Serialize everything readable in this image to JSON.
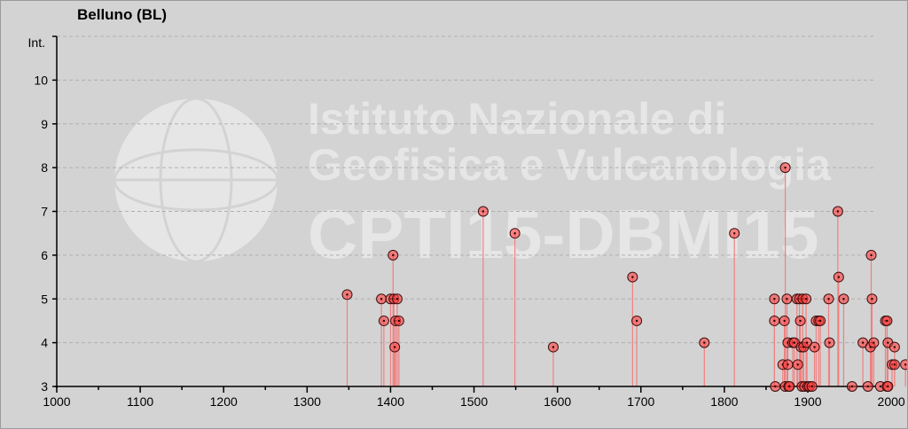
{
  "chart_data": {
    "type": "scatter",
    "title": "Belluno (BL)",
    "ylabel": "Int.",
    "xlabel": "",
    "xlim": [
      1000,
      2020
    ],
    "ylim": [
      3,
      11
    ],
    "x_ticks": [
      1000,
      1100,
      1200,
      1300,
      1400,
      1500,
      1600,
      1700,
      1800,
      1900,
      2000
    ],
    "y_ticks": [
      3,
      4,
      5,
      6,
      7,
      8,
      9,
      10
    ],
    "grid": "horizontal dashed",
    "marker_color": "#ff4040",
    "stem_color": "#f08080",
    "points": [
      {
        "x": 1348,
        "y": 5.1
      },
      {
        "x": 1389,
        "y": 5
      },
      {
        "x": 1392,
        "y": 4.5
      },
      {
        "x": 1400,
        "y": 5
      },
      {
        "x": 1403,
        "y": 6
      },
      {
        "x": 1404,
        "y": 5
      },
      {
        "x": 1405,
        "y": 3.9
      },
      {
        "x": 1406,
        "y": 4.5
      },
      {
        "x": 1408,
        "y": 5
      },
      {
        "x": 1410,
        "y": 4.5
      },
      {
        "x": 1511,
        "y": 7
      },
      {
        "x": 1549,
        "y": 6.5
      },
      {
        "x": 1595,
        "y": 3.9
      },
      {
        "x": 1690,
        "y": 5.5
      },
      {
        "x": 1695,
        "y": 4.5
      },
      {
        "x": 1776,
        "y": 4
      },
      {
        "x": 1812,
        "y": 6.5
      },
      {
        "x": 1860,
        "y": 5
      },
      {
        "x": 1860,
        "y": 4.5
      },
      {
        "x": 1861,
        "y": 3
      },
      {
        "x": 1870,
        "y": 3.5
      },
      {
        "x": 1872,
        "y": 4.5
      },
      {
        "x": 1873,
        "y": 8
      },
      {
        "x": 1873,
        "y": 3
      },
      {
        "x": 1875,
        "y": 5
      },
      {
        "x": 1876,
        "y": 4
      },
      {
        "x": 1876,
        "y": 3.5
      },
      {
        "x": 1877,
        "y": 3
      },
      {
        "x": 1878,
        "y": 3
      },
      {
        "x": 1882,
        "y": 4
      },
      {
        "x": 1884,
        "y": 4
      },
      {
        "x": 1887,
        "y": 5
      },
      {
        "x": 1888,
        "y": 3.5
      },
      {
        "x": 1890,
        "y": 5
      },
      {
        "x": 1891,
        "y": 4.5
      },
      {
        "x": 1892,
        "y": 3.9
      },
      {
        "x": 1893,
        "y": 3
      },
      {
        "x": 1894,
        "y": 5
      },
      {
        "x": 1895,
        "y": 3.9
      },
      {
        "x": 1896,
        "y": 3
      },
      {
        "x": 1898,
        "y": 5
      },
      {
        "x": 1899,
        "y": 4
      },
      {
        "x": 1900,
        "y": 3
      },
      {
        "x": 1902,
        "y": 3
      },
      {
        "x": 1905,
        "y": 3
      },
      {
        "x": 1908,
        "y": 3.9
      },
      {
        "x": 1910,
        "y": 4.5
      },
      {
        "x": 1913,
        "y": 4.5
      },
      {
        "x": 1915,
        "y": 4.5
      },
      {
        "x": 1925,
        "y": 5
      },
      {
        "x": 1926,
        "y": 4
      },
      {
        "x": 1936,
        "y": 7
      },
      {
        "x": 1937,
        "y": 5.5
      },
      {
        "x": 1943,
        "y": 5
      },
      {
        "x": 1953,
        "y": 3
      },
      {
        "x": 1966,
        "y": 4
      },
      {
        "x": 1972,
        "y": 3
      },
      {
        "x": 1975,
        "y": 3.9
      },
      {
        "x": 1976,
        "y": 6
      },
      {
        "x": 1977,
        "y": 5
      },
      {
        "x": 1979,
        "y": 4
      },
      {
        "x": 1987,
        "y": 3
      },
      {
        "x": 1993,
        "y": 4.5
      },
      {
        "x": 1995,
        "y": 3
      },
      {
        "x": 1995,
        "y": 4.5
      },
      {
        "x": 1996,
        "y": 3
      },
      {
        "x": 1996,
        "y": 4
      },
      {
        "x": 2001,
        "y": 3.5
      },
      {
        "x": 2004,
        "y": 3.9
      },
      {
        "x": 2004,
        "y": 3.5
      },
      {
        "x": 2017,
        "y": 3.5
      }
    ]
  },
  "watermark": {
    "line1": "Istituto Nazionale di",
    "line2": "Geofisica e Vulcanologia",
    "line3": "CPTI15-DBMI15"
  }
}
